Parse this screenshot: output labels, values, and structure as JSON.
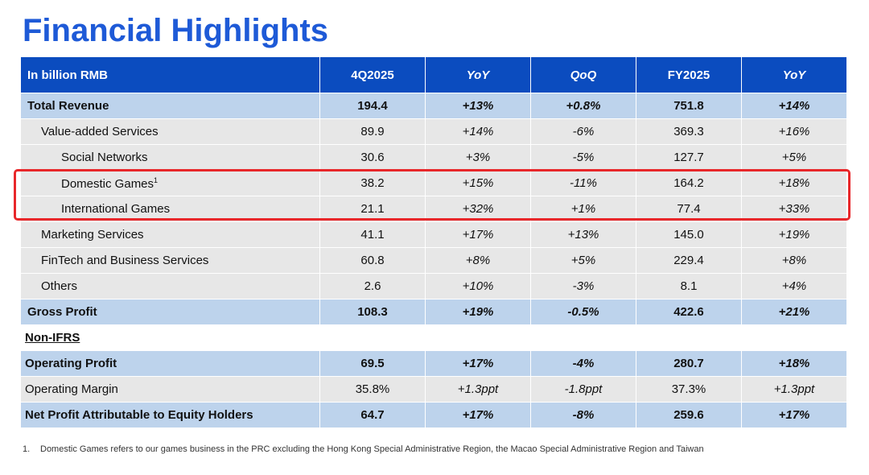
{
  "title": "Financial Highlights",
  "header": {
    "label": "In billion RMB",
    "columns": [
      "4Q2025",
      "YoY",
      "QoQ",
      "FY2025",
      "YoY"
    ]
  },
  "rows": [
    {
      "label": "Total Revenue",
      "q": "194.4",
      "yoy": "+13%",
      "qoq": "+0.8%",
      "fy": "751.8",
      "fyyoy": "+14%"
    },
    {
      "label": "Value-added Services",
      "q": "89.9",
      "yoy": "+14%",
      "qoq": "-6%",
      "fy": "369.3",
      "fyyoy": "+16%"
    },
    {
      "label": "Social Networks",
      "q": "30.6",
      "yoy": "+3%",
      "qoq": "-5%",
      "fy": "127.7",
      "fyyoy": "+5%"
    },
    {
      "label": "Domestic Games",
      "sup": "1",
      "q": "38.2",
      "yoy": "+15%",
      "qoq": "-11%",
      "fy": "164.2",
      "fyyoy": "+18%"
    },
    {
      "label": "International Games",
      "q": "21.1",
      "yoy": "+32%",
      "qoq": "+1%",
      "fy": "77.4",
      "fyyoy": "+33%"
    },
    {
      "label": "Marketing Services",
      "q": "41.1",
      "yoy": "+17%",
      "qoq": "+13%",
      "fy": "145.0",
      "fyyoy": "+19%"
    },
    {
      "label": "FinTech and Business Services",
      "q": "60.8",
      "yoy": "+8%",
      "qoq": "+5%",
      "fy": "229.4",
      "fyyoy": "+8%"
    },
    {
      "label": "Others",
      "q": "2.6",
      "yoy": "+10%",
      "qoq": "-3%",
      "fy": "8.1",
      "fyyoy": "+4%"
    },
    {
      "label": "Gross Profit",
      "q": "108.3",
      "yoy": "+19%",
      "qoq": "-0.5%",
      "fy": "422.6",
      "fyyoy": "+21%"
    },
    {
      "label": "Non-IFRS"
    },
    {
      "label": "Operating Profit",
      "q": "69.5",
      "yoy": "+17%",
      "qoq": "-4%",
      "fy": "280.7",
      "fyyoy": "+18%"
    },
    {
      "label": "Operating Margin",
      "q": "35.8%",
      "yoy": "+1.3ppt",
      "qoq": "-1.8ppt",
      "fy": "37.3%",
      "fyyoy": "+1.3ppt"
    },
    {
      "label": "Net Profit Attributable to Equity Holders",
      "q": "64.7",
      "yoy": "+17%",
      "qoq": "-8%",
      "fy": "259.6",
      "fyyoy": "+17%"
    }
  ],
  "footnote": {
    "number": "1.",
    "text": "Domestic Games refers to our games business in the PRC excluding the Hong Kong Special Administrative Region, the Macao Special Administrative Region and Taiwan"
  },
  "colors": {
    "title": "#1e5ad7",
    "header_bg": "#0b4cbf",
    "total_row_bg": "#bdd3ec",
    "normal_row_bg": "#e7e7e7",
    "highlight_border": "#e8272a"
  }
}
